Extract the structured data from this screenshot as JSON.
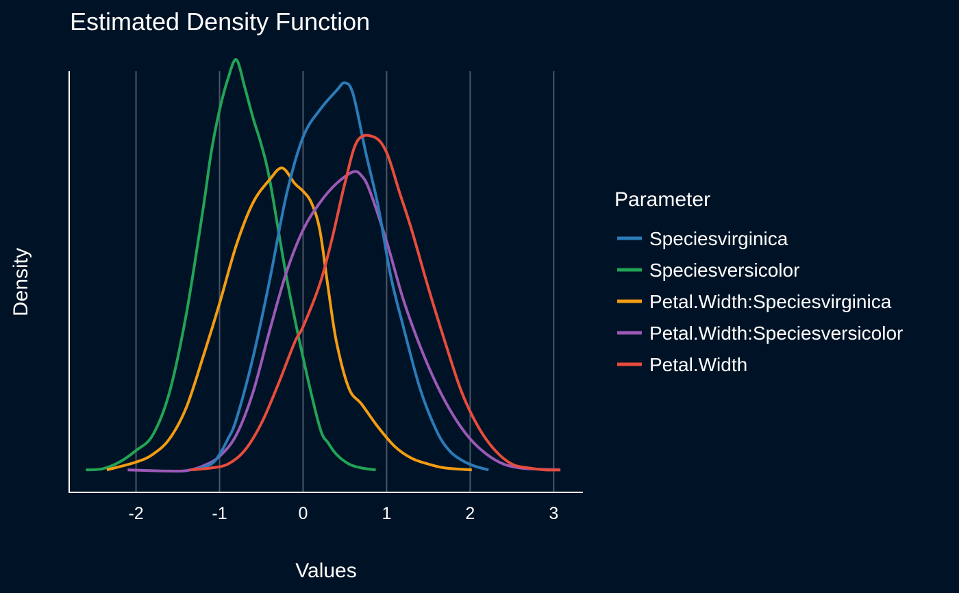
{
  "chart_data": {
    "type": "line",
    "title": "Estimated Density Function",
    "xlabel": "Values",
    "ylabel": "Density",
    "xlim": [
      -2.8,
      3.35
    ],
    "ylim": [
      -0.058,
      1.03
    ],
    "x_ticks": [
      -2,
      -1,
      0,
      1,
      2,
      3
    ],
    "x_tick_labels": [
      "-2",
      "-1",
      "0",
      "1",
      "2",
      "3"
    ],
    "y_ticks_shown": false,
    "grid": "vertical major lines",
    "legend": {
      "title": "Parameter",
      "placement": "right"
    },
    "series": [
      {
        "name": "Speciesvirginica",
        "color": "#2b7bb9",
        "x": [
          -1.3,
          -1.1,
          -1.0,
          -0.9,
          -0.8,
          -0.6,
          -0.4,
          -0.2,
          0.0,
          0.2,
          0.4,
          0.5,
          0.6,
          0.75,
          0.9,
          1.05,
          1.2,
          1.4,
          1.6,
          1.75,
          1.9,
          2.05,
          2.22
        ],
        "y": [
          0.0,
          0.015,
          0.04,
          0.08,
          0.13,
          0.29,
          0.49,
          0.71,
          0.86,
          0.93,
          0.98,
          1.0,
          0.97,
          0.82,
          0.68,
          0.5,
          0.37,
          0.21,
          0.1,
          0.05,
          0.025,
          0.01,
          0.0
        ]
      },
      {
        "name": "Speciesversicolor",
        "color": "#22a355",
        "x": [
          -2.6,
          -2.4,
          -2.2,
          -2.0,
          -1.8,
          -1.6,
          -1.4,
          -1.2,
          -1.1,
          -1.0,
          -0.9,
          -0.8,
          -0.7,
          -0.6,
          -0.5,
          -0.4,
          -0.2,
          0.0,
          0.2,
          0.3,
          0.4,
          0.55,
          0.7,
          0.87
        ],
        "y": [
          0.0,
          0.003,
          0.02,
          0.05,
          0.09,
          0.2,
          0.4,
          0.67,
          0.82,
          0.93,
          1.01,
          1.06,
          0.99,
          0.91,
          0.84,
          0.75,
          0.5,
          0.29,
          0.11,
          0.07,
          0.04,
          0.015,
          0.005,
          0.0
        ]
      },
      {
        "name": "Petal.Width:Speciesvirginica",
        "color": "#f39c12",
        "x": [
          -2.35,
          -2.0,
          -1.8,
          -1.6,
          -1.4,
          -1.2,
          -1.0,
          -0.8,
          -0.6,
          -0.4,
          -0.25,
          -0.1,
          0.0,
          0.1,
          0.2,
          0.3,
          0.4,
          0.55,
          0.7,
          0.9,
          1.1,
          1.3,
          1.5,
          1.7,
          2.02
        ],
        "y": [
          0.0,
          0.02,
          0.04,
          0.08,
          0.16,
          0.29,
          0.43,
          0.58,
          0.69,
          0.75,
          0.78,
          0.74,
          0.72,
          0.69,
          0.62,
          0.47,
          0.33,
          0.21,
          0.17,
          0.11,
          0.06,
          0.03,
          0.015,
          0.005,
          0.0
        ]
      },
      {
        "name": "Petal.Width:Speciesversicolor",
        "color": "#9b59b6",
        "x": [
          -2.1,
          -1.8,
          -1.6,
          -1.4,
          -1.2,
          -1.0,
          -0.8,
          -0.6,
          -0.4,
          -0.2,
          0.0,
          0.2,
          0.4,
          0.6,
          0.7,
          0.8,
          1.0,
          1.2,
          1.4,
          1.6,
          1.8,
          2.0,
          2.2,
          2.4,
          2.6,
          2.8,
          3.08
        ],
        "y": [
          0.0,
          -0.002,
          -0.003,
          -0.002,
          0.01,
          0.035,
          0.09,
          0.2,
          0.36,
          0.51,
          0.62,
          0.69,
          0.74,
          0.77,
          0.76,
          0.72,
          0.59,
          0.44,
          0.32,
          0.22,
          0.14,
          0.08,
          0.04,
          0.015,
          0.005,
          0.002,
          0.0
        ]
      },
      {
        "name": "Petal.Width",
        "color": "#e74c3c",
        "x": [
          -1.35,
          -1.1,
          -0.9,
          -0.7,
          -0.5,
          -0.3,
          -0.1,
          0.0,
          0.2,
          0.35,
          0.5,
          0.65,
          0.85,
          1.0,
          1.15,
          1.3,
          1.5,
          1.7,
          1.9,
          2.1,
          2.3,
          2.5,
          2.7,
          2.9,
          3.08
        ],
        "y": [
          0.0,
          0.005,
          0.015,
          0.05,
          0.12,
          0.22,
          0.33,
          0.37,
          0.48,
          0.6,
          0.74,
          0.85,
          0.86,
          0.82,
          0.72,
          0.62,
          0.47,
          0.33,
          0.2,
          0.11,
          0.05,
          0.015,
          0.005,
          0.0,
          0.0
        ]
      }
    ]
  }
}
